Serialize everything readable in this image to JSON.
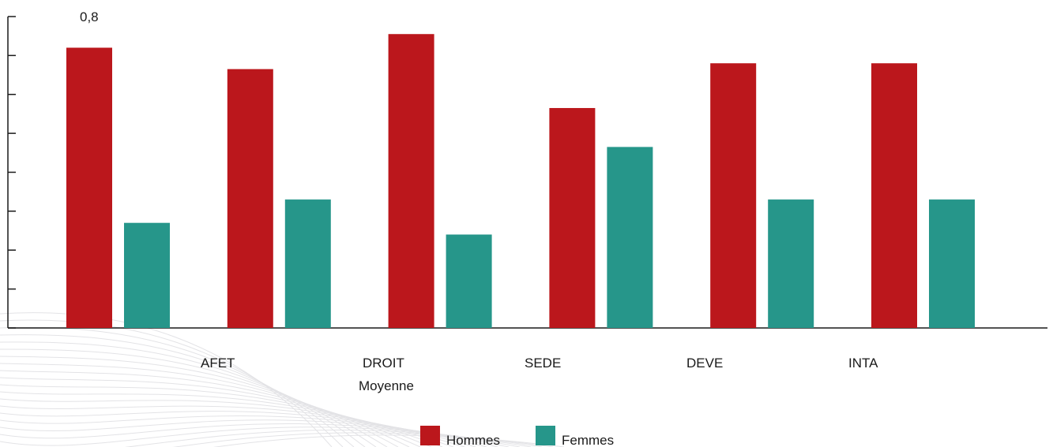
{
  "chart_data": {
    "type": "bar",
    "categories": [
      "",
      "AFET",
      "DROIT",
      "SEDE",
      "DEVE",
      "INTA"
    ],
    "extra_label": "Moyenne",
    "series": [
      {
        "name": "Hommes",
        "color": "#BB171C",
        "values": [
          0.72,
          0.665,
          0.755,
          0.565,
          0.68,
          0.68
        ]
      },
      {
        "name": "Femmes",
        "color": "#26968A",
        "values": [
          0.27,
          0.33,
          0.24,
          0.465,
          0.33,
          0.33
        ]
      }
    ],
    "top_label": "0,8",
    "ylim": [
      0,
      0.8
    ],
    "legend_position": "bottom"
  }
}
